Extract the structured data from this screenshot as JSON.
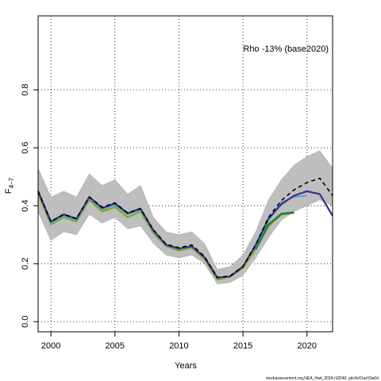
{
  "chart_data": {
    "type": "line",
    "annotation": "Rho -13% (base2020)",
    "xlabel": "Years",
    "ylabel_main": "F",
    "ylabel_sub": "4−7",
    "footer": "stockassessment.org,NEA_Had_2024,r18240, gitc9c61ac53a0d",
    "xlim": [
      1999,
      2022
    ],
    "ylim": [
      -0.035,
      1.055
    ],
    "x_ticks": [
      2000,
      2005,
      2010,
      2015,
      2020
    ],
    "y_ticks": [
      0.0,
      0.2,
      0.4,
      0.6,
      0.8
    ],
    "y_tick_labels": [
      "0.0",
      "0.2",
      "0.4",
      "0.6",
      "0.8"
    ],
    "grid": true,
    "confidence_band": {
      "color": "#bebebe",
      "x": [
        1999,
        2000,
        2001,
        2002,
        2003,
        2004,
        2005,
        2006,
        2007,
        2008,
        2009,
        2010,
        2011,
        2012,
        2013,
        2014,
        2015,
        2016,
        2017,
        2018,
        2019,
        2020,
        2021,
        2022
      ],
      "lower": [
        0.38,
        0.28,
        0.31,
        0.3,
        0.37,
        0.34,
        0.36,
        0.32,
        0.33,
        0.27,
        0.23,
        0.22,
        0.23,
        0.2,
        0.13,
        0.135,
        0.16,
        0.22,
        0.29,
        0.35,
        0.38,
        0.4,
        0.42,
        0.4
      ],
      "upper": [
        0.53,
        0.43,
        0.45,
        0.43,
        0.51,
        0.47,
        0.49,
        0.44,
        0.47,
        0.36,
        0.31,
        0.3,
        0.31,
        0.27,
        0.18,
        0.19,
        0.23,
        0.31,
        0.42,
        0.49,
        0.54,
        0.57,
        0.59,
        0.53
      ]
    },
    "series": [
      {
        "color": "#7CAE00",
        "width": 2,
        "x": [
          1999,
          2000,
          2001,
          2002,
          2003,
          2004,
          2005,
          2006,
          2007,
          2008,
          2009,
          2010,
          2011,
          2012,
          2013,
          2014,
          2015,
          2016,
          2017,
          2018,
          2019
        ],
        "values": [
          0.44,
          0.335,
          0.36,
          0.345,
          0.42,
          0.38,
          0.395,
          0.36,
          0.38,
          0.305,
          0.26,
          0.245,
          0.255,
          0.215,
          0.145,
          0.155,
          0.185,
          0.25,
          0.33,
          0.37,
          0.375
        ]
      },
      {
        "color": "#1B7F3A",
        "width": 2.5,
        "x": [
          2016,
          2017,
          2018,
          2019
        ],
        "values": [
          0.25,
          0.335,
          0.372,
          0.377
        ]
      },
      {
        "color": "#4FA3D1",
        "width": 1.8,
        "x": [
          1999,
          2000,
          2001,
          2002,
          2003,
          2004,
          2005,
          2006,
          2007,
          2008,
          2009,
          2010,
          2011,
          2012,
          2013,
          2014,
          2015,
          2016,
          2017,
          2018,
          2019,
          2020
        ],
        "values": [
          0.45,
          0.34,
          0.365,
          0.35,
          0.425,
          0.387,
          0.402,
          0.37,
          0.386,
          0.31,
          0.263,
          0.25,
          0.258,
          0.22,
          0.15,
          0.155,
          0.19,
          0.26,
          0.35,
          0.412,
          0.43,
          0.435
        ]
      },
      {
        "color": "#3B2D8F",
        "width": 2.2,
        "x": [
          1999,
          2000,
          2001,
          2002,
          2003,
          2004,
          2005,
          2006,
          2007,
          2008,
          2009,
          2010,
          2011,
          2012,
          2013,
          2014,
          2015,
          2016,
          2017,
          2018,
          2019,
          2020,
          2021,
          2022
        ],
        "values": [
          0.45,
          0.345,
          0.37,
          0.355,
          0.43,
          0.392,
          0.408,
          0.374,
          0.39,
          0.315,
          0.265,
          0.252,
          0.26,
          0.222,
          0.152,
          0.156,
          0.19,
          0.265,
          0.355,
          0.405,
          0.435,
          0.45,
          0.44,
          0.365
        ]
      },
      {
        "color": "#000000",
        "width": 1.6,
        "dash": "5,4",
        "x": [
          1999,
          2000,
          2001,
          2002,
          2003,
          2004,
          2005,
          2006,
          2007,
          2008,
          2009,
          2010,
          2011,
          2012,
          2013,
          2014,
          2015,
          2016,
          2017,
          2018,
          2019,
          2020,
          2021,
          2022
        ],
        "values": [
          0.45,
          0.345,
          0.37,
          0.355,
          0.43,
          0.395,
          0.41,
          0.375,
          0.39,
          0.317,
          0.267,
          0.255,
          0.265,
          0.225,
          0.152,
          0.158,
          0.19,
          0.265,
          0.36,
          0.418,
          0.455,
          0.48,
          0.495,
          0.435
        ]
      }
    ]
  }
}
